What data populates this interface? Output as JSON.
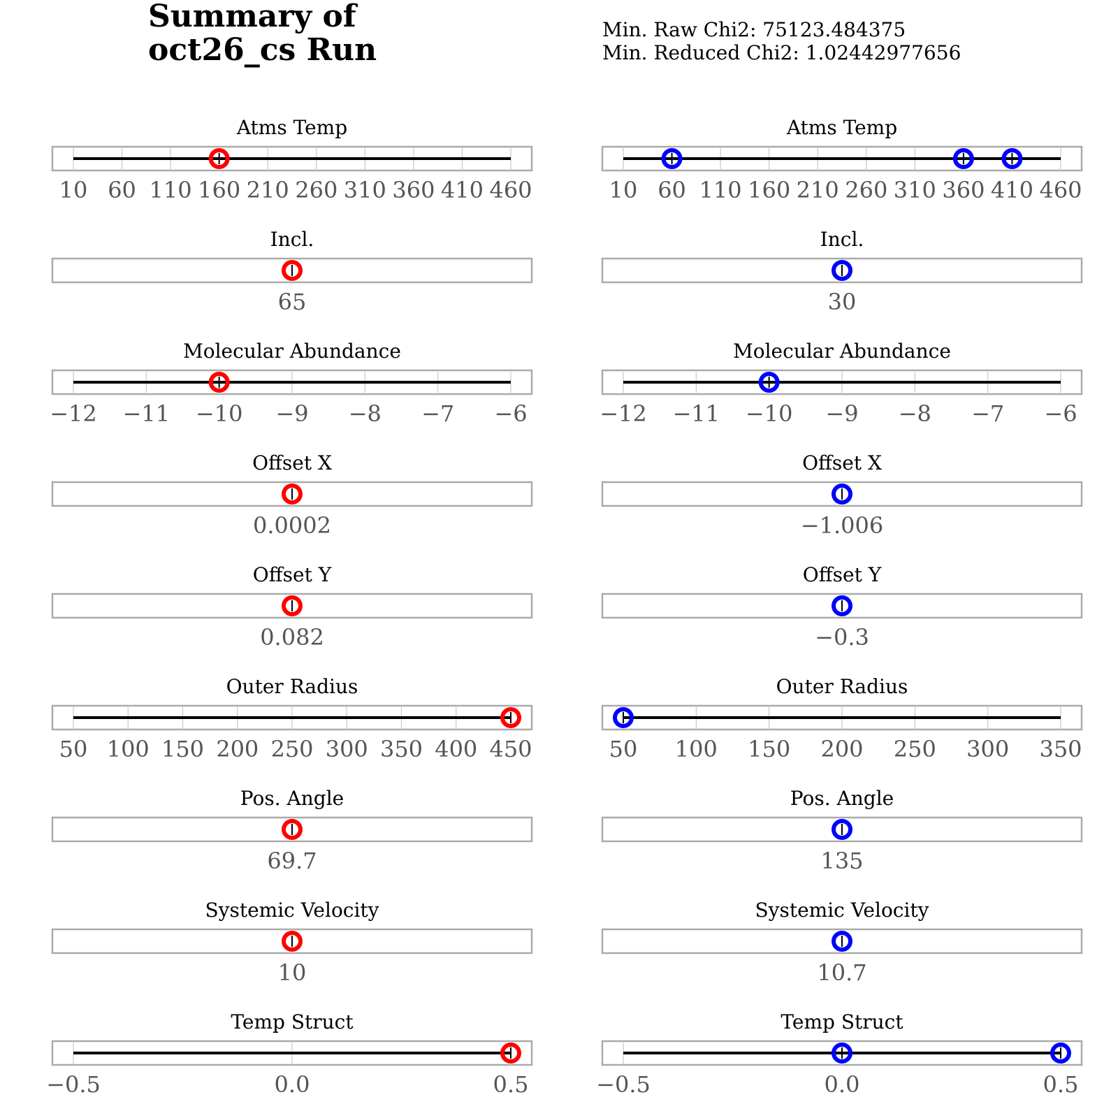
{
  "title": "Summary of\noct26_cs Run",
  "min_raw_chi2_text": "Min. Raw Chi2: 75123.484375",
  "min_reduced_chi2_text": "Min. Reduced Chi2: 1.02442977656",
  "colors": {
    "left_marker": "#ff0000",
    "right_marker": "#0000ff",
    "frame": "#aaaaaa",
    "tick_text": "#555555"
  },
  "chart_data": [
    {
      "type": "scatter",
      "column": "left",
      "panels": [
        {
          "title": "Atms Temp",
          "range": [
            10,
            460
          ],
          "ticks": [
            "10",
            "60",
            "110",
            "160",
            "210",
            "260",
            "310",
            "360",
            "410",
            "460"
          ],
          "tick_values": [
            10,
            60,
            110,
            160,
            210,
            260,
            310,
            360,
            410,
            460
          ],
          "markers": [
            160
          ]
        },
        {
          "title": "Incl.",
          "ticks": [
            "65"
          ],
          "tick_values": [
            65
          ],
          "markers": [
            65
          ]
        },
        {
          "title": "Molecular Abundance",
          "range": [
            -12,
            -6
          ],
          "ticks": [
            "−12",
            "−11",
            "−10",
            "−9",
            "−8",
            "−7",
            "−6"
          ],
          "tick_values": [
            -12,
            -11,
            -10,
            -9,
            -8,
            -7,
            -6
          ],
          "markers": [
            -10
          ]
        },
        {
          "title": "Offset X",
          "ticks": [
            "0.0002"
          ],
          "tick_values": [
            0.0002
          ],
          "markers": [
            0.0002
          ]
        },
        {
          "title": "Offset Y",
          "ticks": [
            "0.082"
          ],
          "tick_values": [
            0.082
          ],
          "markers": [
            0.082
          ]
        },
        {
          "title": "Outer Radius",
          "range": [
            50,
            450
          ],
          "ticks": [
            "50",
            "100",
            "150",
            "200",
            "250",
            "300",
            "350",
            "400",
            "450"
          ],
          "tick_values": [
            50,
            100,
            150,
            200,
            250,
            300,
            350,
            400,
            450
          ],
          "markers": [
            450
          ]
        },
        {
          "title": "Pos. Angle",
          "ticks": [
            "69.7"
          ],
          "tick_values": [
            69.7
          ],
          "markers": [
            69.7
          ]
        },
        {
          "title": "Systemic Velocity",
          "ticks": [
            "10"
          ],
          "tick_values": [
            10
          ],
          "markers": [
            10
          ]
        },
        {
          "title": "Temp Struct",
          "range": [
            -0.5,
            0.5
          ],
          "ticks": [
            "−0.5",
            "0.0",
            "0.5"
          ],
          "tick_values": [
            -0.5,
            0.0,
            0.5
          ],
          "markers": [
            0.5
          ]
        }
      ]
    },
    {
      "type": "scatter",
      "column": "right",
      "panels": [
        {
          "title": "Atms Temp",
          "range": [
            10,
            460
          ],
          "ticks": [
            "10",
            "60",
            "110",
            "160",
            "210",
            "260",
            "310",
            "360",
            "410",
            "460"
          ],
          "tick_values": [
            10,
            60,
            110,
            160,
            210,
            260,
            310,
            360,
            410,
            460
          ],
          "markers": [
            60,
            360,
            410
          ]
        },
        {
          "title": "Incl.",
          "ticks": [
            "30"
          ],
          "tick_values": [
            30
          ],
          "markers": [
            30
          ]
        },
        {
          "title": "Molecular Abundance",
          "range": [
            -12,
            -6
          ],
          "ticks": [
            "−12",
            "−11",
            "−10",
            "−9",
            "−8",
            "−7",
            "−6"
          ],
          "tick_values": [
            -12,
            -11,
            -10,
            -9,
            -8,
            -7,
            -6
          ],
          "markers": [
            -10
          ]
        },
        {
          "title": "Offset X",
          "ticks": [
            "−1.006"
          ],
          "tick_values": [
            -1.006
          ],
          "markers": [
            -1.006
          ]
        },
        {
          "title": "Offset Y",
          "ticks": [
            "−0.3"
          ],
          "tick_values": [
            -0.3
          ],
          "markers": [
            -0.3
          ]
        },
        {
          "title": "Outer Radius",
          "range": [
            50,
            350
          ],
          "ticks": [
            "50",
            "100",
            "150",
            "200",
            "250",
            "300",
            "350"
          ],
          "tick_values": [
            50,
            100,
            150,
            200,
            250,
            300,
            350
          ],
          "markers": [
            50
          ]
        },
        {
          "title": "Pos. Angle",
          "ticks": [
            "135"
          ],
          "tick_values": [
            135
          ],
          "markers": [
            135
          ]
        },
        {
          "title": "Systemic Velocity",
          "ticks": [
            "10.7"
          ],
          "tick_values": [
            10.7
          ],
          "markers": [
            10.7
          ]
        },
        {
          "title": "Temp Struct",
          "range": [
            -0.5,
            0.5
          ],
          "ticks": [
            "−0.5",
            "0.0",
            "0.5"
          ],
          "tick_values": [
            -0.5,
            0.0,
            0.5
          ],
          "markers": [
            0.0,
            0.5
          ]
        }
      ]
    }
  ]
}
